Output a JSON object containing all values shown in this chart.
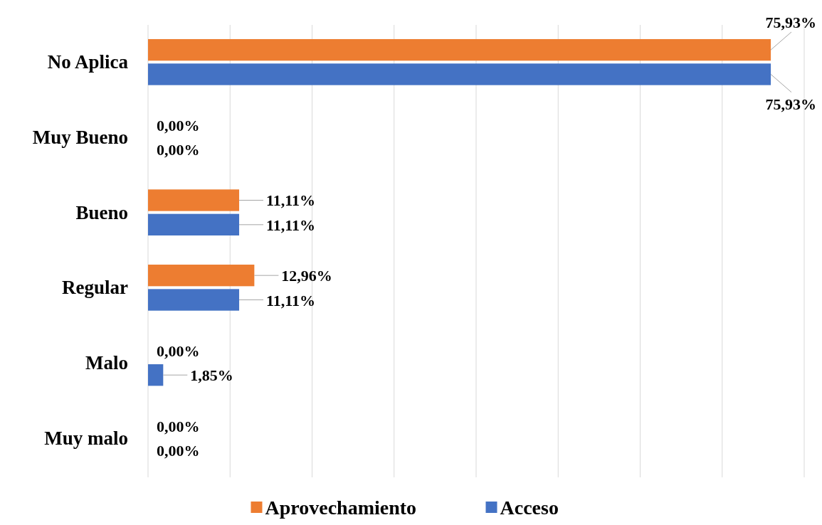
{
  "chart_data": {
    "type": "bar",
    "orientation": "horizontal",
    "categories": [
      "No Aplica",
      "Muy Bueno",
      "Bueno",
      "Regular",
      "Malo",
      "Muy malo"
    ],
    "series": [
      {
        "name": "Aprovechamiento",
        "color": "#ed7d31",
        "values": [
          75.93,
          0,
          11.11,
          12.96,
          0,
          0
        ],
        "value_labels": [
          "75,93%",
          "0,00%",
          "11,11%",
          "12,96%",
          "0,00%",
          "0,00%"
        ]
      },
      {
        "name": "Acceso",
        "color": "#4472c4",
        "values": [
          75.93,
          0,
          11.11,
          11.11,
          1.85,
          0
        ],
        "value_labels": [
          "75,93%",
          "0,00%",
          "11,11%",
          "11,11%",
          "1,85%",
          "0,00%"
        ]
      }
    ],
    "xlim": [
      0,
      80
    ],
    "xticks": [
      {
        "value": 0,
        "label": null
      },
      {
        "value": 10,
        "label": null
      },
      {
        "value": 20,
        "label": null
      },
      {
        "value": 30,
        "label": null
      },
      {
        "value": 40,
        "label": null
      },
      {
        "value": 50,
        "label": null
      },
      {
        "value": 60,
        "label": null
      },
      {
        "value": 70,
        "label": null
      },
      {
        "value": 80,
        "label": null
      }
    ],
    "grid": "x",
    "legend": "bottom",
    "tick_labels": "y"
  }
}
